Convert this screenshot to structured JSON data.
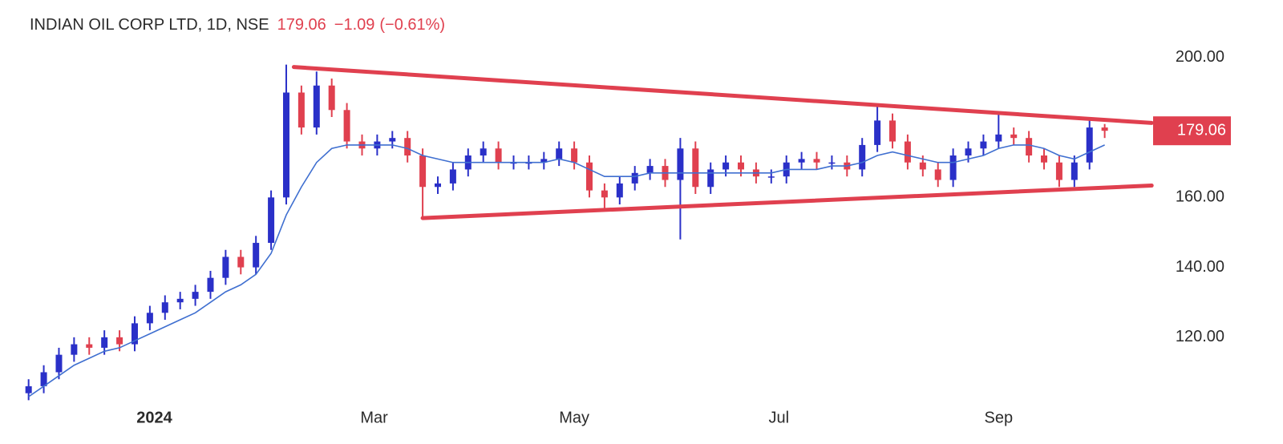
{
  "chart_data": {
    "type": "candlestick",
    "title": "INDIAN OIL CORP LTD, 1D, NSE",
    "last_price": 179.06,
    "change": "−1.09",
    "change_percent": "(−0.61%)",
    "up_color": "#2a30c8",
    "down_color": "#e0404f",
    "open": [
      104,
      106,
      110,
      115,
      118,
      117,
      120,
      118,
      124,
      127,
      130,
      131,
      133,
      137,
      143,
      140,
      147,
      160,
      190,
      180,
      192,
      185,
      176,
      174,
      176,
      177,
      172,
      163,
      164,
      168,
      172,
      174,
      170,
      170,
      170,
      171,
      174,
      170,
      162,
      160,
      164,
      167,
      169,
      165,
      174,
      163,
      168,
      170,
      168,
      166,
      166,
      170,
      171,
      170,
      170,
      168,
      175,
      182,
      176,
      170,
      168,
      165,
      172,
      174,
      176,
      178,
      177,
      172,
      170,
      165,
      170,
      180
    ],
    "high": [
      108,
      112,
      117,
      120,
      120,
      122,
      122,
      126,
      129,
      132,
      133,
      135,
      139,
      145,
      145,
      149,
      162,
      198,
      192,
      196,
      194,
      187,
      178,
      178,
      179,
      179,
      174,
      166,
      170,
      174,
      176,
      176,
      172,
      172,
      173,
      176,
      176,
      172,
      164,
      166,
      169,
      171,
      171,
      177,
      176,
      170,
      172,
      172,
      170,
      168,
      172,
      173,
      173,
      172,
      172,
      177,
      186,
      184,
      178,
      172,
      170,
      174,
      176,
      178,
      184,
      180,
      179,
      174,
      172,
      172,
      182,
      181
    ],
    "low": [
      102,
      104,
      108,
      113,
      115,
      115,
      116,
      116,
      122,
      125,
      128,
      129,
      131,
      135,
      138,
      138,
      145,
      158,
      178,
      178,
      183,
      174,
      172,
      172,
      174,
      170,
      154,
      161,
      162,
      166,
      170,
      168,
      168,
      168,
      168,
      169,
      168,
      160,
      156,
      158,
      162,
      165,
      163,
      148,
      161,
      161,
      166,
      166,
      164,
      164,
      164,
      168,
      168,
      168,
      166,
      166,
      173,
      174,
      168,
      166,
      163,
      163,
      170,
      172,
      174,
      175,
      170,
      168,
      163,
      163,
      168,
      177
    ],
    "close": [
      106,
      110,
      115,
      118,
      117,
      120,
      118,
      124,
      127,
      130,
      131,
      133,
      137,
      143,
      140,
      147,
      160,
      190,
      180,
      192,
      185,
      176,
      174,
      176,
      177,
      172,
      163,
      164,
      168,
      172,
      174,
      170,
      170,
      170,
      171,
      174,
      170,
      162,
      160,
      164,
      167,
      169,
      165,
      174,
      163,
      168,
      170,
      168,
      166,
      166,
      170,
      171,
      170,
      170,
      168,
      175,
      182,
      176,
      170,
      168,
      165,
      172,
      174,
      176,
      178,
      177,
      172,
      170,
      165,
      170,
      180,
      179.06
    ],
    "moving_average": {
      "color": "#3f6fd0",
      "values": [
        103,
        106,
        109,
        112,
        114,
        116,
        117,
        119,
        121,
        123,
        125,
        127,
        130,
        133,
        135,
        138,
        144,
        155,
        163,
        170,
        174,
        175,
        175,
        175,
        175,
        174,
        172,
        171,
        170,
        170,
        170,
        170,
        170,
        170,
        170,
        171,
        170,
        168,
        166,
        166,
        166,
        167,
        167,
        167,
        167,
        167,
        167,
        167,
        167,
        167,
        168,
        168,
        168,
        169,
        169,
        170,
        172,
        173,
        172,
        171,
        170,
        170,
        171,
        172,
        174,
        175,
        175,
        174,
        172,
        171,
        173,
        175
      ]
    },
    "trendlines": [
      {
        "color": "#e0404f",
        "x": [
          17.5,
          74.1
        ],
        "y": [
          197.3,
          181.3
        ]
      },
      {
        "color": "#e0404f",
        "x": [
          26.0,
          74.1
        ],
        "y": [
          154.1,
          163.4
        ]
      }
    ],
    "xlim": [
      -0.3,
      74.3
    ],
    "ylim": [
      103,
      207.3
    ],
    "xticks": [
      {
        "value": 8.3,
        "label": "2024"
      },
      {
        "value": 22.8,
        "label": "Mar"
      },
      {
        "value": 36.0,
        "label": "May"
      },
      {
        "value": 49.5,
        "label": "Jul"
      },
      {
        "value": 64.0,
        "label": "Sep"
      }
    ],
    "yticks": [
      {
        "value": 120,
        "label": "120.00"
      },
      {
        "value": 140,
        "label": "140.00"
      },
      {
        "value": 160,
        "label": "160.00"
      },
      {
        "value": 200,
        "label": "200.00"
      }
    ]
  }
}
